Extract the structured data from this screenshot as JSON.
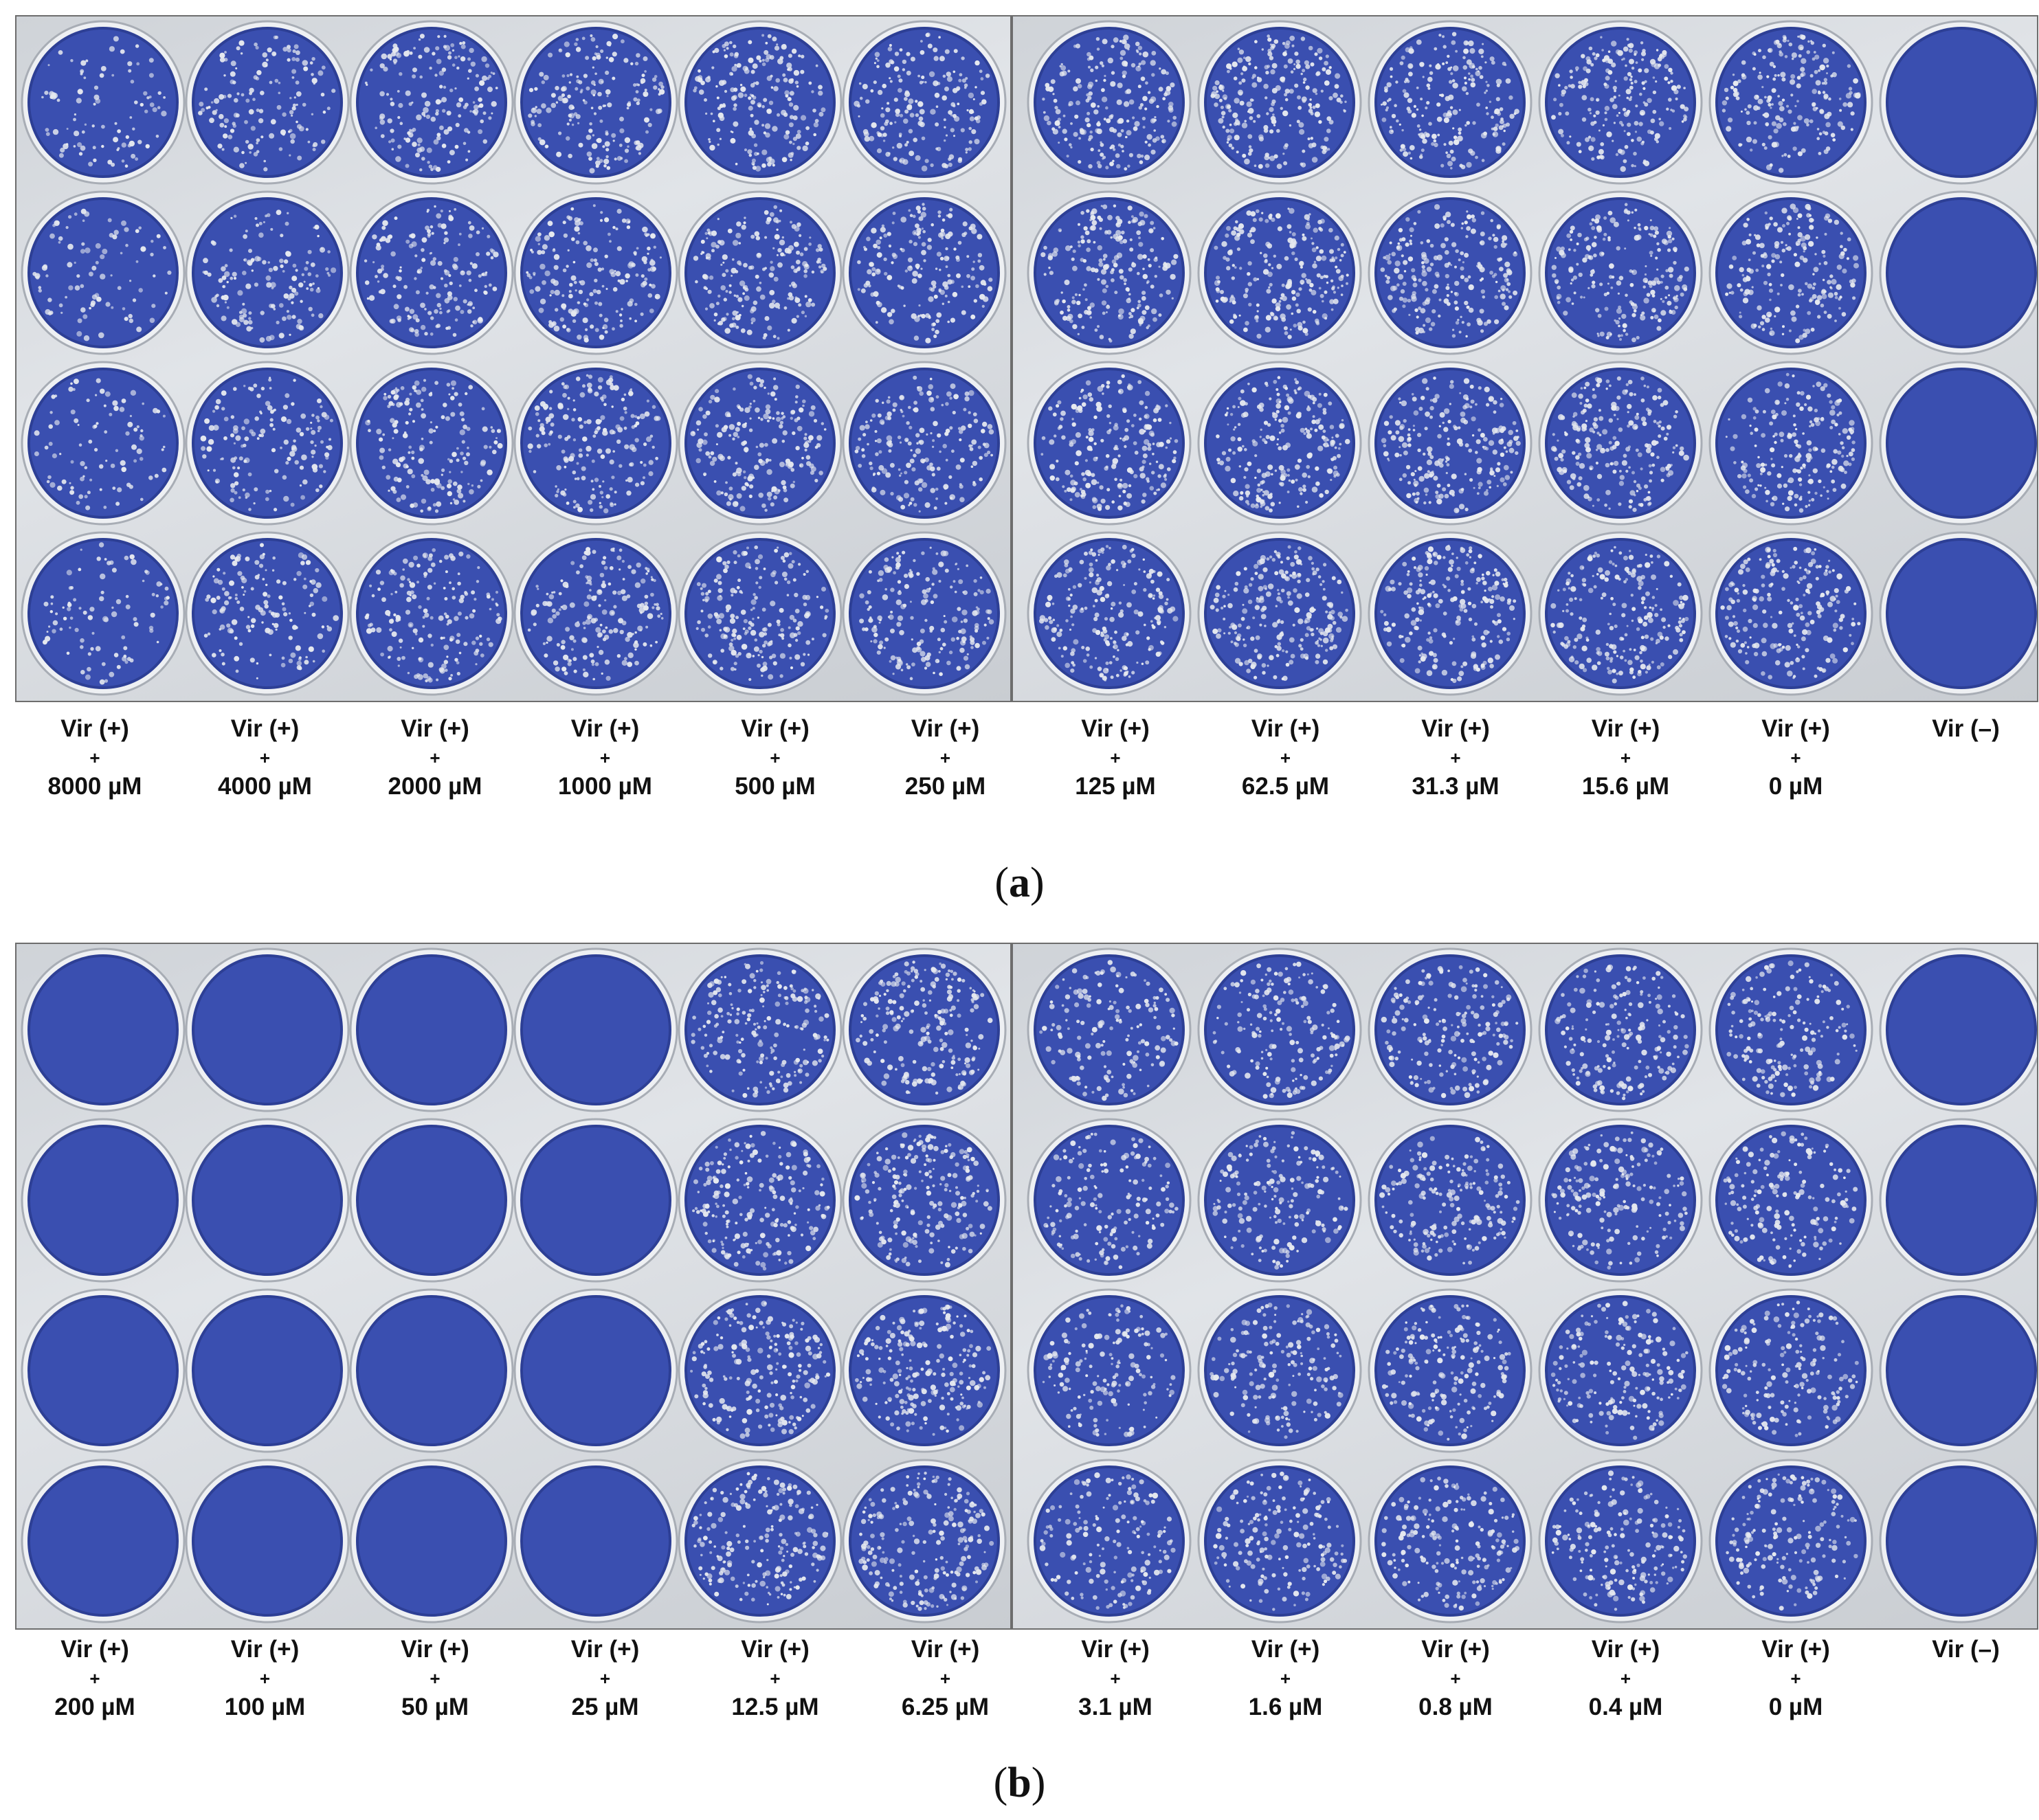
{
  "panels": [
    {
      "caption_letter": "a",
      "labels": [
        {
          "top": "Vir (+)",
          "mid": "+",
          "bottom": "8000 µM"
        },
        {
          "top": "Vir (+)",
          "mid": "+",
          "bottom": "4000 µM"
        },
        {
          "top": "Vir (+)",
          "mid": "+",
          "bottom": "2000 µM"
        },
        {
          "top": "Vir (+)",
          "mid": "+",
          "bottom": "1000 µM"
        },
        {
          "top": "Vir (+)",
          "mid": "+",
          "bottom": "500 µM"
        },
        {
          "top": "Vir (+)",
          "mid": "+",
          "bottom": "250 µM"
        },
        {
          "top": "Vir (+)",
          "mid": "+",
          "bottom": "125 µM"
        },
        {
          "top": "Vir (+)",
          "mid": "+",
          "bottom": "62.5 µM"
        },
        {
          "top": "Vir (+)",
          "mid": "+",
          "bottom": "31.3 µM"
        },
        {
          "top": "Vir (+)",
          "mid": "+",
          "bottom": "15.6 µM"
        },
        {
          "top": "Vir (+)",
          "mid": "+",
          "bottom": "0 µM"
        },
        {
          "top": "Vir (–)",
          "mid": "",
          "bottom": ""
        }
      ],
      "plaque_density": [
        0.35,
        0.55,
        0.65,
        0.7,
        0.75,
        0.7,
        0.8,
        0.85,
        0.8,
        0.8,
        0.75,
        0
      ],
      "colors": {
        "well": "#3a4fb0",
        "well_dark": "#2d3f95",
        "plaque": "#e6e9ef"
      }
    },
    {
      "caption_letter": "b",
      "labels": [
        {
          "top": "Vir (+)",
          "mid": "+",
          "bottom": "200 µM"
        },
        {
          "top": "Vir (+)",
          "mid": "+",
          "bottom": "100 µM"
        },
        {
          "top": "Vir (+)",
          "mid": "+",
          "bottom": "50 µM"
        },
        {
          "top": "Vir (+)",
          "mid": "+",
          "bottom": "25 µM"
        },
        {
          "top": "Vir (+)",
          "mid": "+",
          "bottom": "12.5 µM"
        },
        {
          "top": "Vir (+)",
          "mid": "+",
          "bottom": "6.25 µM"
        },
        {
          "top": "Vir (+)",
          "mid": "+",
          "bottom": "3.1 µM"
        },
        {
          "top": "Vir (+)",
          "mid": "+",
          "bottom": "1.6 µM"
        },
        {
          "top": "Vir (+)",
          "mid": "+",
          "bottom": "0.8 µM"
        },
        {
          "top": "Vir (+)",
          "mid": "+",
          "bottom": "0.4 µM"
        },
        {
          "top": "Vir (+)",
          "mid": "+",
          "bottom": "0 µM"
        },
        {
          "top": "Vir (–)",
          "mid": "",
          "bottom": ""
        }
      ],
      "plaque_density": [
        0,
        0,
        0,
        0,
        0.75,
        0.8,
        0.6,
        0.65,
        0.7,
        0.7,
        0.65,
        0
      ],
      "colors": {
        "well": "#3a4fb0",
        "well_dark": "#2d3f95",
        "plaque": "#e6e9ef"
      }
    }
  ]
}
